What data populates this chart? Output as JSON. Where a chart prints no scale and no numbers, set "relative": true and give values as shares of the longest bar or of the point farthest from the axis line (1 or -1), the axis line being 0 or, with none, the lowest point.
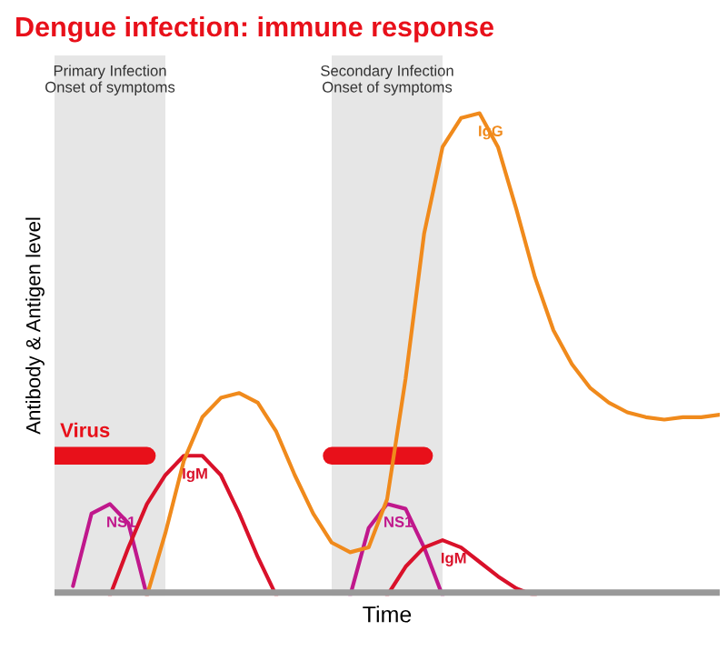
{
  "chart_data": {
    "type": "line",
    "relative": true,
    "title": "Dengue infection: immune response",
    "xlabel": "Time",
    "ylabel": "Antibody & Antigen level",
    "line_style": "solid",
    "marker": "none",
    "categories": [
      null,
      null,
      null,
      null,
      null,
      null,
      null,
      null,
      null,
      null,
      null,
      null,
      null,
      null,
      null,
      null,
      null,
      null,
      null,
      null,
      null,
      null,
      null,
      null,
      null,
      null,
      null,
      null,
      null,
      null,
      null,
      null,
      null,
      null,
      null,
      null,
      null
    ],
    "annotations": [
      "Primary Infection\nOnset of symptoms",
      "Secondary Infection\nOnset of symptoms"
    ],
    "series": [
      {
        "name": "Virus",
        "color": "#e8101a",
        "values": [
          0.29,
          0.29,
          0.29,
          0.29,
          0.29,
          0.29,
          null,
          null,
          null,
          null,
          null,
          null,
          null,
          null,
          null,
          0.29,
          0.29,
          0.29,
          0.29,
          0.29,
          0.29,
          null,
          null,
          null,
          null,
          null,
          null,
          null,
          null,
          null,
          null,
          null,
          null,
          null,
          null,
          null,
          null
        ]
      },
      {
        "name": "NS1",
        "color": "#c0188c",
        "values": [
          null,
          0.02,
          0.17,
          0.19,
          0.15,
          0.0,
          null,
          null,
          null,
          null,
          null,
          null,
          null,
          null,
          null,
          null,
          null,
          null,
          null,
          null,
          null,
          null,
          null,
          null,
          null,
          null,
          null,
          null,
          null,
          null,
          null,
          null,
          null,
          null,
          null,
          null,
          null
        ]
      },
      {
        "name": "NS1",
        "color": "#c0188c",
        "values": [
          null,
          null,
          null,
          null,
          null,
          null,
          null,
          null,
          null,
          null,
          null,
          null,
          null,
          null,
          null,
          null,
          0.0,
          0.14,
          0.19,
          0.18,
          0.1,
          0.0,
          null,
          null,
          null,
          null,
          null,
          null,
          null,
          null,
          null,
          null,
          null,
          null,
          null,
          null,
          null
        ]
      },
      {
        "name": "IgM",
        "color": "#d9112a",
        "values": [
          null,
          null,
          null,
          0.0,
          0.1,
          0.19,
          0.25,
          0.29,
          0.29,
          0.25,
          0.17,
          0.08,
          0.0,
          null,
          null,
          null,
          null,
          null,
          null,
          null,
          null,
          null,
          null,
          null,
          null,
          null,
          null,
          null,
          null,
          null,
          null,
          null,
          null,
          null,
          null,
          null,
          null
        ]
      },
      {
        "name": "IgM",
        "color": "#d9112a",
        "values": [
          null,
          null,
          null,
          null,
          null,
          null,
          null,
          null,
          null,
          null,
          null,
          null,
          null,
          null,
          null,
          null,
          null,
          null,
          0.0,
          0.06,
          0.1,
          0.115,
          0.1,
          0.07,
          0.04,
          0.015,
          0.0,
          null,
          null,
          null,
          null,
          null,
          null,
          null,
          null,
          null,
          null
        ]
      },
      {
        "name": "IgG",
        "color": "#f08a1c",
        "values": [
          null,
          null,
          null,
          null,
          null,
          0.0,
          0.13,
          0.28,
          0.37,
          0.41,
          0.42,
          0.4,
          0.34,
          0.25,
          0.17,
          0.11,
          0.09,
          0.1,
          0.2,
          0.45,
          0.75,
          0.93,
          0.99,
          1.0,
          0.93,
          0.8,
          0.66,
          0.55,
          0.48,
          0.43,
          0.4,
          0.38,
          0.37,
          0.365,
          0.37,
          0.37,
          0.375
        ]
      }
    ]
  }
}
